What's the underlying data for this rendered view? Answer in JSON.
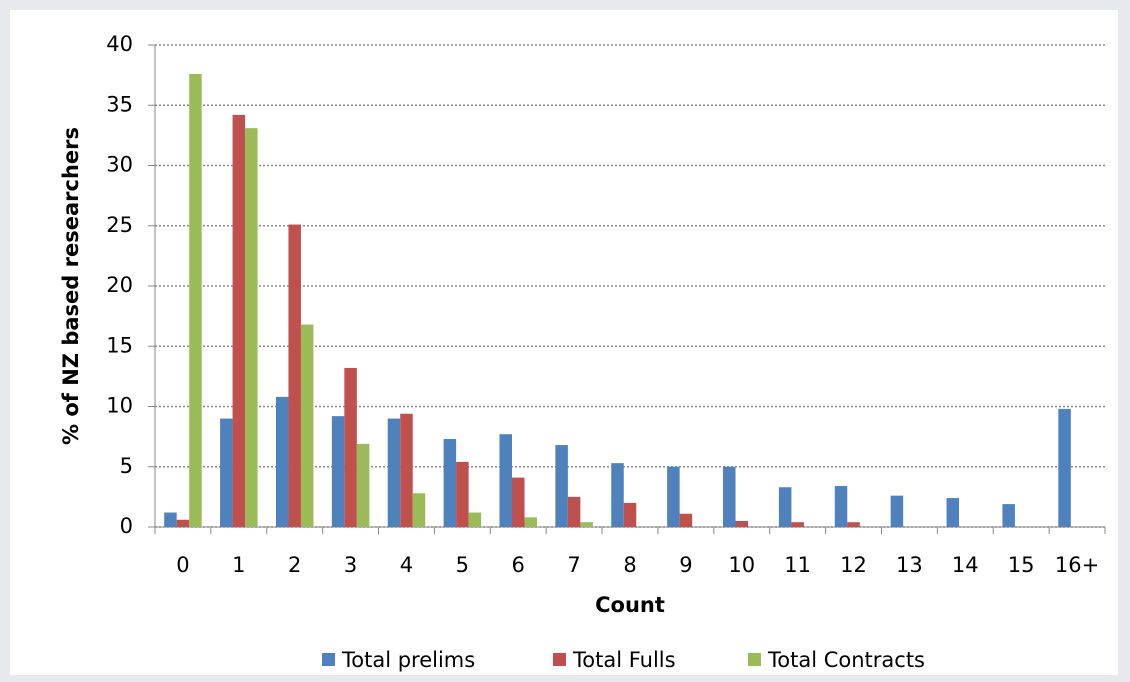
{
  "chart_data": {
    "type": "bar",
    "y_label": "% of NZ based researchers",
    "x_label": "Count",
    "categories": [
      "0",
      "1",
      "2",
      "3",
      "4",
      "5",
      "6",
      "7",
      "8",
      "9",
      "10",
      "11",
      "12",
      "13",
      "14",
      "15",
      "16+"
    ],
    "series": [
      {
        "name": "Total prelims",
        "color": "#4f81bd",
        "values": [
          1.2,
          9.0,
          10.8,
          9.2,
          9.0,
          7.3,
          7.7,
          6.8,
          5.3,
          5.0,
          5.0,
          3.3,
          3.4,
          2.6,
          2.4,
          1.9,
          9.8
        ]
      },
      {
        "name": "Total Fulls",
        "color": "#c0504d",
        "values": [
          0.6,
          34.2,
          25.1,
          13.2,
          9.4,
          5.4,
          4.1,
          2.5,
          2.0,
          1.1,
          0.5,
          0.4,
          0.4,
          null,
          null,
          null,
          null
        ]
      },
      {
        "name": "Total Contracts",
        "color": "#9bbb59",
        "values": [
          37.6,
          33.1,
          16.8,
          6.9,
          2.8,
          1.2,
          0.8,
          0.4,
          null,
          null,
          null,
          null,
          null,
          null,
          null,
          null,
          null
        ]
      }
    ],
    "ylim": [
      0,
      40
    ],
    "yticks": [
      0,
      5,
      10,
      15,
      20,
      25,
      30,
      35,
      40
    ],
    "grid": true,
    "legend": "bottom"
  }
}
